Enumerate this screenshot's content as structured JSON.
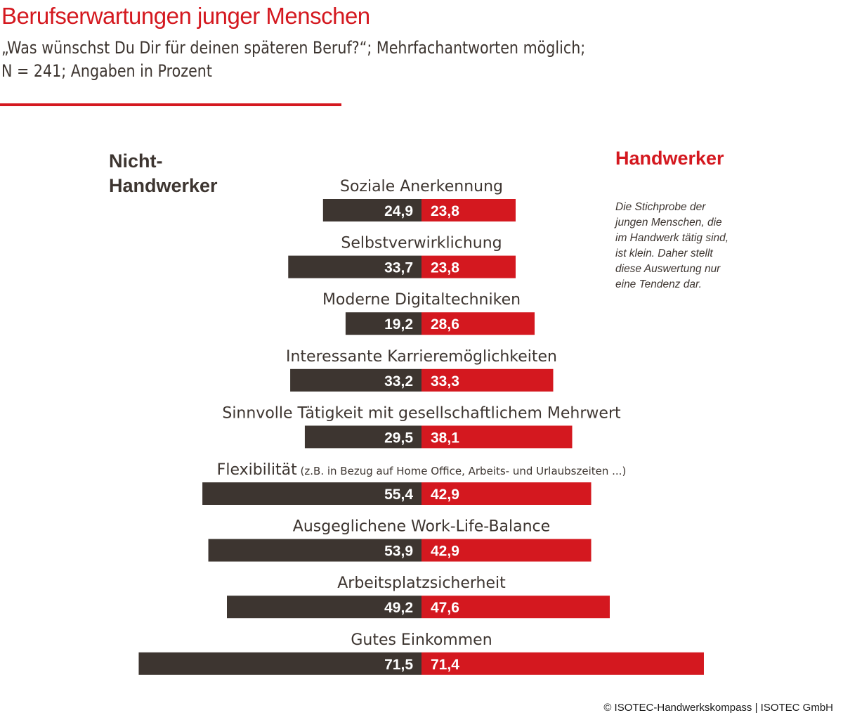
{
  "title": "Berufserwartungen junger Menschen",
  "subtitle_line1": "„Was wünschst Du Dir für deinen späteren Beruf?“; Mehrfachantworten möglich;",
  "subtitle_line2": "N = 241; Angaben in Prozent",
  "left_heading_line1": "Nicht-",
  "left_heading_line2": "Handwerker",
  "right_heading": "Handwerker",
  "note": "Die Stichprobe der\njungen Menschen,    die\nim Handwerk tätig sind,\nist klein. Daher stellt\ndiese Auswertung nur\neine Tendenz dar.",
  "footer": "© ISOTEC-Handwerkskompass | ISOTEC GmbH",
  "colors": {
    "accent": "#d4181f",
    "dark": "#3d3530",
    "background": "#ffffff"
  },
  "chart_data": {
    "type": "bar",
    "orientation": "horizontal-diverging",
    "categories": [
      "Soziale Anerkennung",
      "Selbstverwirklichung",
      "Moderne Digitaltechniken",
      "Interessante Karrieremöglichkeiten",
      "Sinnvolle Tätigkeit mit gesellschaftlichem Mehrwert",
      "Flexibilität",
      "Ausgeglichene Work-Life-Balance",
      "Arbeitsplatzsicherheit",
      "Gutes Einkommen"
    ],
    "category_notes": [
      "",
      "",
      "",
      "",
      "",
      "(z.B. in Bezug auf Home Office, Arbeits- und Urlaubszeiten ...)",
      "",
      "",
      ""
    ],
    "series": [
      {
        "name": "Nicht-Handwerker",
        "color": "#3d3530",
        "side": "left",
        "values": [
          24.9,
          33.7,
          19.2,
          33.2,
          29.5,
          55.4,
          53.9,
          49.2,
          71.5
        ],
        "labels": [
          "24,9",
          "33,7",
          "19,2",
          "33,2",
          "29,5",
          "55,4",
          "53,9",
          "49,2",
          "71,5"
        ]
      },
      {
        "name": "Handwerker",
        "color": "#d4181f",
        "side": "right",
        "values": [
          23.8,
          23.8,
          28.6,
          33.3,
          38.1,
          42.9,
          42.9,
          47.6,
          71.4
        ],
        "labels": [
          "23,8",
          "23,8",
          "28,6",
          "33,3",
          "38,1",
          "42,9",
          "42,9",
          "47,6",
          "71,4"
        ]
      }
    ],
    "xlim": [
      0,
      75
    ],
    "grid": false,
    "legend": "headings-top"
  }
}
